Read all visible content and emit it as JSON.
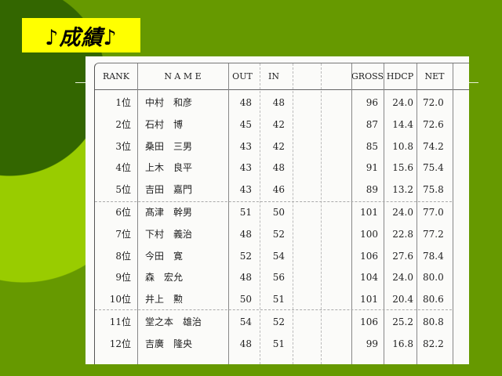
{
  "title": "♪成績♪",
  "colors": {
    "background": "#669900",
    "dark_circle": "#336600",
    "light_ring": "#99cc00",
    "title_bg": "#ffff00"
  },
  "table": {
    "headers": {
      "rank": "RANK",
      "name": "N A M E",
      "out": "OUT",
      "in": "IN",
      "gross": "GROSS",
      "hdcp": "HDCP",
      "net": "NET"
    },
    "rows": [
      {
        "rank": "1位",
        "name": "中村　和彦",
        "out": "48",
        "in": "48",
        "gross": "96",
        "hdcp": "24.0",
        "net": "72.0"
      },
      {
        "rank": "2位",
        "name": "石村　博",
        "out": "45",
        "in": "42",
        "gross": "87",
        "hdcp": "14.4",
        "net": "72.6"
      },
      {
        "rank": "3位",
        "name": "桑田　三男",
        "out": "43",
        "in": "42",
        "gross": "85",
        "hdcp": "10.8",
        "net": "74.2"
      },
      {
        "rank": "4位",
        "name": "上木　良平",
        "out": "43",
        "in": "48",
        "gross": "91",
        "hdcp": "15.6",
        "net": "75.4"
      },
      {
        "rank": "5位",
        "name": "吉田　嘉門",
        "out": "43",
        "in": "46",
        "gross": "89",
        "hdcp": "13.2",
        "net": "75.8"
      },
      {
        "rank": "6位",
        "name": "髙津　幹男",
        "out": "51",
        "in": "50",
        "gross": "101",
        "hdcp": "24.0",
        "net": "77.0"
      },
      {
        "rank": "7位",
        "name": "下村　義治",
        "out": "48",
        "in": "52",
        "gross": "100",
        "hdcp": "22.8",
        "net": "77.2"
      },
      {
        "rank": "8位",
        "name": "今田　寛",
        "out": "52",
        "in": "54",
        "gross": "106",
        "hdcp": "27.6",
        "net": "78.4"
      },
      {
        "rank": "9位",
        "name": "森　宏允",
        "out": "48",
        "in": "56",
        "gross": "104",
        "hdcp": "24.0",
        "net": "80.0"
      },
      {
        "rank": "10位",
        "name": "井上　勲",
        "out": "50",
        "in": "51",
        "gross": "101",
        "hdcp": "20.4",
        "net": "80.6"
      },
      {
        "rank": "11位",
        "name": "堂之本　雄治",
        "out": "54",
        "in": "52",
        "gross": "106",
        "hdcp": "25.2",
        "net": "80.8"
      },
      {
        "rank": "12位",
        "name": "吉廣　隆央",
        "out": "48",
        "in": "51",
        "gross": "99",
        "hdcp": "16.8",
        "net": "82.2"
      }
    ]
  }
}
